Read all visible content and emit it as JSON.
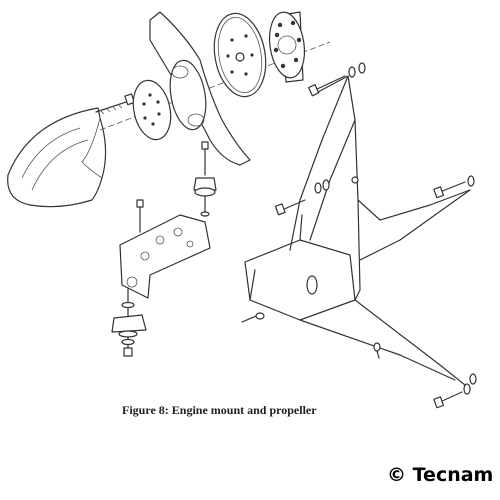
{
  "figure": {
    "caption": "Figure 8: Engine mount and propeller",
    "credit": "© Tecnam"
  }
}
